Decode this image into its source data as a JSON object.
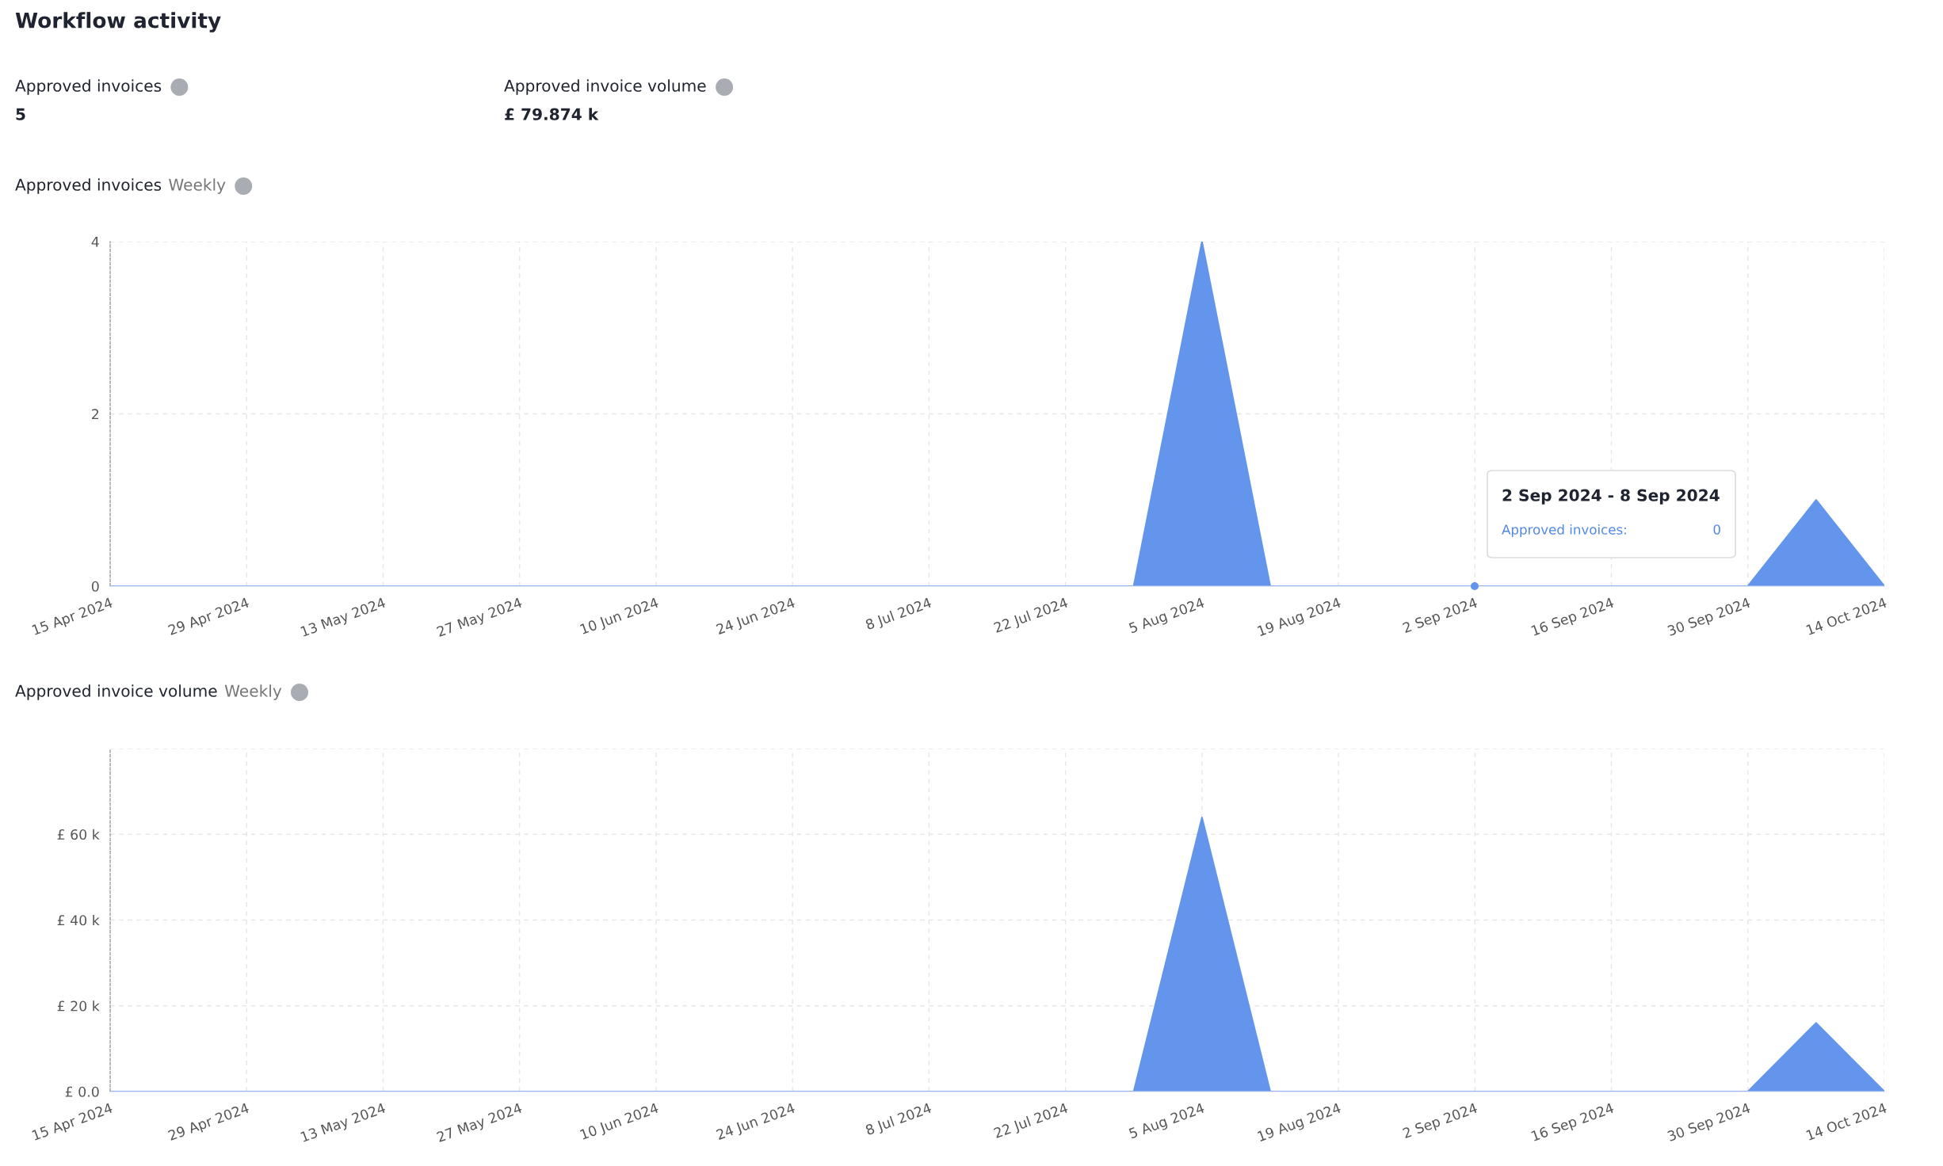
{
  "chart_data": [
    {
      "type": "other",
      "title": "Workflow activity",
      "annotations": [
        "Approved invoices",
        "5",
        "Approved invoice volume",
        "£ 79.874 k"
      ]
    },
    {
      "type": "area",
      "title": "Approved invoices",
      "subtitle": "Weekly",
      "x": [
        "2024-04-15",
        "2024-04-22",
        "2024-04-29",
        "2024-05-06",
        "2024-05-13",
        "2024-05-20",
        "2024-05-27",
        "2024-06-03",
        "2024-06-10",
        "2024-06-17",
        "2024-06-24",
        "2024-07-01",
        "2024-07-08",
        "2024-07-15",
        "2024-07-22",
        "2024-07-29",
        "2024-08-05",
        "2024-08-12",
        "2024-08-19",
        "2024-08-26",
        "2024-09-02",
        "2024-09-09",
        "2024-09-16",
        "2024-09-23",
        "2024-09-30",
        "2024-10-07",
        "2024-10-14"
      ],
      "series": [
        {
          "color": "#6395ec",
          "values": [
            0,
            0,
            0,
            0,
            0,
            0,
            0,
            0,
            0,
            0,
            0,
            0,
            0,
            0,
            0,
            0,
            4,
            0,
            0,
            0,
            0,
            0,
            0,
            0,
            0,
            1,
            0
          ]
        }
      ],
      "xlim": [
        "2024-04-15",
        "2024-10-14"
      ],
      "xticks": [
        {
          "value": "2024-04-15",
          "label": "15 Apr 2024"
        },
        {
          "value": "2024-04-29",
          "label": "29 Apr 2024"
        },
        {
          "value": "2024-05-13",
          "label": "13 May 2024"
        },
        {
          "value": "2024-05-27",
          "label": "27 May 2024"
        },
        {
          "value": "2024-06-10",
          "label": "10 Jun 2024"
        },
        {
          "value": "2024-06-24",
          "label": "24 Jun 2024"
        },
        {
          "value": "2024-07-08",
          "label": "8 Jul 2024"
        },
        {
          "value": "2024-07-22",
          "label": "22 Jul 2024"
        },
        {
          "value": "2024-08-05",
          "label": "5 Aug 2024"
        },
        {
          "value": "2024-08-19",
          "label": "19 Aug 2024"
        },
        {
          "value": "2024-09-02",
          "label": "2 Sep 2024"
        },
        {
          "value": "2024-09-16",
          "label": "16 Sep 2024"
        },
        {
          "value": "2024-09-30",
          "label": "30 Sep 2024"
        },
        {
          "value": "2024-10-14",
          "label": "14 Oct 2024"
        }
      ],
      "ylim": [
        0,
        4
      ],
      "yticks": [
        0,
        2,
        4
      ],
      "grid": true,
      "annotations": [
        "2 Sep 2024 - 8 Sep 2024",
        "Approved invoices:",
        "0"
      ]
    },
    {
      "type": "area",
      "title": "Approved invoice volume",
      "subtitle": "Weekly",
      "x": [
        "2024-04-15",
        "2024-04-22",
        "2024-04-29",
        "2024-05-06",
        "2024-05-13",
        "2024-05-20",
        "2024-05-27",
        "2024-06-03",
        "2024-06-10",
        "2024-06-17",
        "2024-06-24",
        "2024-07-01",
        "2024-07-08",
        "2024-07-15",
        "2024-07-22",
        "2024-07-29",
        "2024-08-05",
        "2024-08-12",
        "2024-08-19",
        "2024-08-26",
        "2024-09-02",
        "2024-09-09",
        "2024-09-16",
        "2024-09-23",
        "2024-09-30",
        "2024-10-07",
        "2024-10-14"
      ],
      "series": [
        {
          "color": "#6395ec",
          "values": [
            0,
            0,
            0,
            0,
            0,
            0,
            0,
            0,
            0,
            0,
            0,
            0,
            0,
            0,
            0,
            0,
            63.9,
            0,
            0,
            0,
            0,
            0,
            0,
            0,
            0,
            16,
            0
          ]
        }
      ],
      "xlim": [
        "2024-04-15",
        "2024-10-14"
      ],
      "xticks": [
        {
          "value": "2024-04-15",
          "label": "15 Apr 2024"
        },
        {
          "value": "2024-04-29",
          "label": "29 Apr 2024"
        },
        {
          "value": "2024-05-13",
          "label": "13 May 2024"
        },
        {
          "value": "2024-05-27",
          "label": "27 May 2024"
        },
        {
          "value": "2024-06-10",
          "label": "10 Jun 2024"
        },
        {
          "value": "2024-06-24",
          "label": "24 Jun 2024"
        },
        {
          "value": "2024-07-08",
          "label": "8 Jul 2024"
        },
        {
          "value": "2024-07-22",
          "label": "22 Jul 2024"
        },
        {
          "value": "2024-08-05",
          "label": "5 Aug 2024"
        },
        {
          "value": "2024-08-19",
          "label": "19 Aug 2024"
        },
        {
          "value": "2024-09-02",
          "label": "2 Sep 2024"
        },
        {
          "value": "2024-09-16",
          "label": "16 Sep 2024"
        },
        {
          "value": "2024-09-30",
          "label": "30 Sep 2024"
        },
        {
          "value": "2024-10-14",
          "label": "14 Oct 2024"
        }
      ],
      "ylim": [
        0,
        80
      ],
      "yticks": [
        {
          "value": 0,
          "label": "£ 0.0"
        },
        {
          "value": 20,
          "label": "£ 20 k"
        },
        {
          "value": 40,
          "label": "£ 40 k"
        },
        {
          "value": 60,
          "label": "£ 60 k"
        },
        {
          "value": 80,
          "label": null
        }
      ],
      "grid": true
    }
  ]
}
